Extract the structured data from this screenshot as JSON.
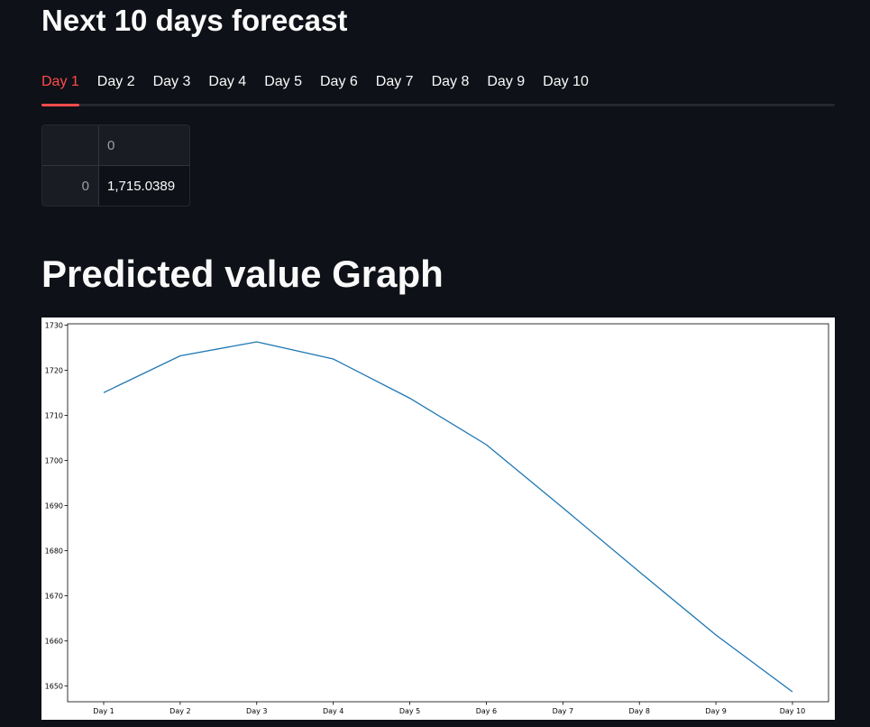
{
  "forecast": {
    "title": "Next 10 days forecast",
    "tabs": [
      "Day 1",
      "Day 2",
      "Day 3",
      "Day 4",
      "Day 5",
      "Day 6",
      "Day 7",
      "Day 8",
      "Day 9",
      "Day 10"
    ],
    "active_tab": "Day 1",
    "table": {
      "column_header": "0",
      "rows": [
        {
          "index": "0",
          "value": "1,715.0389"
        }
      ]
    }
  },
  "graph": {
    "title": "Predicted value Graph"
  },
  "colors": {
    "background": "#0e1117",
    "accent": "#ff4b4b",
    "line": "#1f77b4"
  },
  "chart_data": {
    "type": "line",
    "categories": [
      "Day 1",
      "Day 2",
      "Day 3",
      "Day 4",
      "Day 5",
      "Day 6",
      "Day 7",
      "Day 8",
      "Day 9",
      "Day 10"
    ],
    "series": [
      {
        "values": [
          1715.04,
          1723.2,
          1726.3,
          1722.5,
          1713.8,
          1703.5,
          1689.5,
          1675.3,
          1661.3,
          1648.7
        ]
      }
    ],
    "yticks": [
      1650,
      1660,
      1670,
      1680,
      1690,
      1700,
      1710,
      1720,
      1730
    ],
    "ylim": [
      1646.5,
      1730.3
    ],
    "grid": false
  }
}
